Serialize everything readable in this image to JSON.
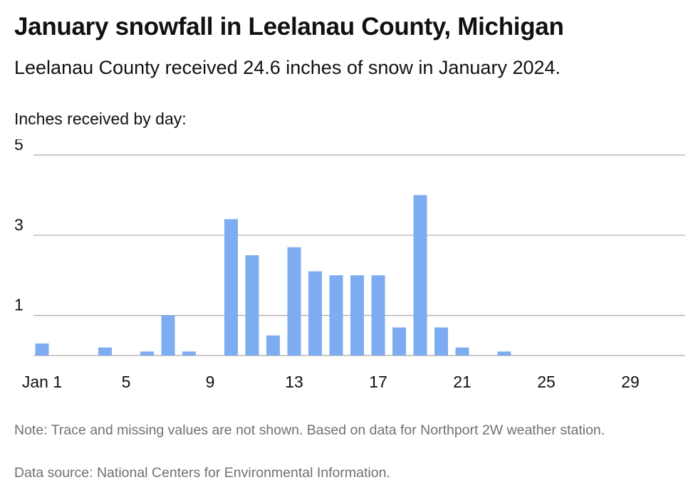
{
  "header": {
    "title": "January snowfall in Leelanau County, Michigan",
    "subtitle": "Leelanau County received 24.6 inches of snow in January 2024.",
    "axis_intro": "Inches received by day:"
  },
  "footer": {
    "note": "Note: Trace and missing values are not shown. Based on data for Northport 2W weather station.",
    "source": "Data source: National Centers for Environmental Information."
  },
  "chart_data": {
    "type": "bar",
    "title": "January snowfall in Leelanau County, Michigan",
    "subtitle": "Leelanau County received 24.6 inches of snow in January 2024.",
    "ylabel": "Inches received by day:",
    "xlabel": "",
    "ylim": [
      0,
      5
    ],
    "y_ticks": [
      1,
      3,
      5
    ],
    "x_ticks": [
      {
        "day": 1,
        "label": "Jan 1"
      },
      {
        "day": 5,
        "label": "5"
      },
      {
        "day": 9,
        "label": "9"
      },
      {
        "day": 13,
        "label": "13"
      },
      {
        "day": 17,
        "label": "17"
      },
      {
        "day": 21,
        "label": "21"
      },
      {
        "day": 25,
        "label": "25"
      },
      {
        "day": 29,
        "label": "29"
      }
    ],
    "days": [
      1,
      2,
      3,
      4,
      5,
      6,
      7,
      8,
      9,
      10,
      11,
      12,
      13,
      14,
      15,
      16,
      17,
      18,
      19,
      20,
      21,
      22,
      23,
      24,
      25,
      26,
      27,
      28,
      29,
      30,
      31
    ],
    "values": [
      0.3,
      0,
      0,
      0.2,
      0,
      0.1,
      1.0,
      0.1,
      0,
      3.4,
      2.5,
      0.5,
      2.7,
      2.1,
      2.0,
      2.0,
      2.0,
      0.7,
      4.0,
      0.7,
      0.2,
      0,
      0.1,
      0,
      0,
      0,
      0,
      0,
      0,
      0,
      0
    ],
    "bar_color": "#7eacf0",
    "grid": true,
    "legend": "none"
  }
}
